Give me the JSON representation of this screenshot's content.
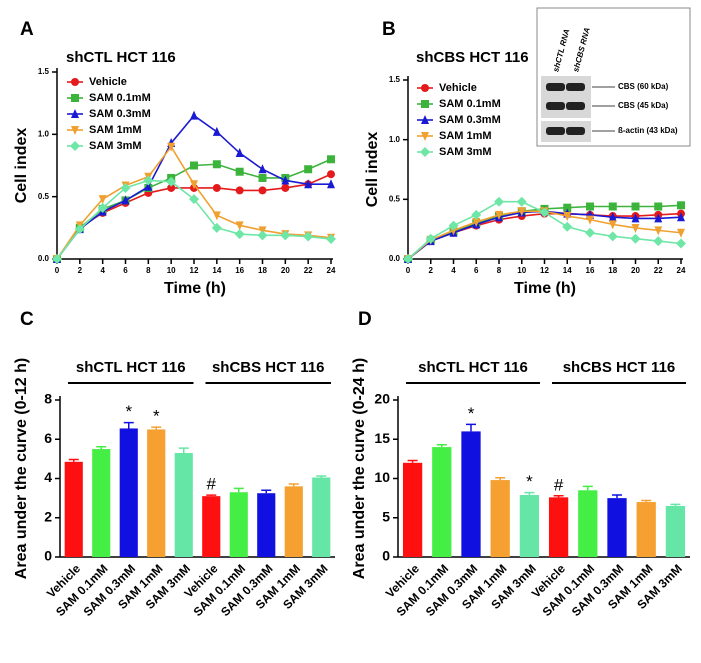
{
  "chart_data": [
    {
      "type": "line",
      "label": "A",
      "title": "shCTL HCT 116",
      "x_label": "Time (h)",
      "y_label": "Cell index",
      "x": [
        0,
        2,
        4,
        6,
        8,
        10,
        12,
        14,
        16,
        18,
        20,
        22,
        24
      ],
      "xlim": [
        0,
        24
      ],
      "xticks": [
        0,
        2,
        4,
        6,
        8,
        10,
        12,
        14,
        16,
        18,
        20,
        22,
        24
      ],
      "ylim": [
        0,
        1.5
      ],
      "yticks": [
        {
          "value": 0,
          "label": "0.0"
        },
        0.5,
        {
          "value": 1,
          "label": "1.0"
        },
        1.5
      ],
      "series": [
        {
          "name": "Vehicle",
          "color": "#e41a1c",
          "marker": "circle",
          "values": [
            0,
            0.25,
            0.37,
            0.45,
            0.53,
            0.57,
            0.57,
            0.57,
            0.55,
            0.55,
            0.57,
            0.6,
            0.68
          ]
        },
        {
          "name": "SAM 0.1mM",
          "color": "#3cb43c",
          "marker": "square",
          "values": [
            0,
            0.25,
            0.4,
            0.47,
            0.57,
            0.65,
            0.75,
            0.76,
            0.7,
            0.65,
            0.65,
            0.72,
            0.8
          ]
        },
        {
          "name": "SAM 0.3mM",
          "color": "#1a1ad2",
          "marker": "triangle",
          "values": [
            0,
            0.24,
            0.38,
            0.47,
            0.58,
            0.93,
            1.15,
            1.02,
            0.85,
            0.72,
            0.63,
            0.6,
            0.6
          ]
        },
        {
          "name": "SAM 1mM",
          "color": "#f0a030",
          "marker": "triangle-down",
          "values": [
            0,
            0.27,
            0.48,
            0.59,
            0.66,
            0.9,
            0.6,
            0.35,
            0.27,
            0.23,
            0.2,
            0.19,
            0.17
          ]
        },
        {
          "name": "SAM 3mM",
          "color": "#6ee6a6",
          "marker": "diamond",
          "values": [
            0,
            0.24,
            0.41,
            0.57,
            0.63,
            0.62,
            0.48,
            0.25,
            0.2,
            0.19,
            0.19,
            0.18,
            0.16
          ]
        }
      ]
    },
    {
      "type": "line",
      "label": "B",
      "title": "shCBS HCT 116",
      "x_label": "Time (h)",
      "y_label": "Cell index",
      "x": [
        0,
        2,
        4,
        6,
        8,
        10,
        12,
        14,
        16,
        18,
        20,
        22,
        24
      ],
      "xlim": [
        0,
        24
      ],
      "xticks": [
        0,
        2,
        4,
        6,
        8,
        10,
        12,
        14,
        16,
        18,
        20,
        22,
        24
      ],
      "ylim": [
        0,
        1.5
      ],
      "yticks": [
        {
          "value": 0,
          "label": "0.0"
        },
        0.5,
        {
          "value": 1,
          "label": "1.0"
        },
        1.5
      ],
      "series": [
        {
          "name": "Vehicle",
          "color": "#e41a1c",
          "marker": "circle",
          "values": [
            0,
            0.15,
            0.22,
            0.28,
            0.33,
            0.36,
            0.38,
            0.38,
            0.37,
            0.36,
            0.36,
            0.37,
            0.38
          ]
        },
        {
          "name": "SAM 0.1mM",
          "color": "#3cb43c",
          "marker": "square",
          "values": [
            0,
            0.16,
            0.23,
            0.3,
            0.36,
            0.4,
            0.42,
            0.43,
            0.44,
            0.44,
            0.44,
            0.44,
            0.45
          ]
        },
        {
          "name": "SAM 0.3mM",
          "color": "#1a1ad2",
          "marker": "triangle",
          "values": [
            0,
            0.15,
            0.22,
            0.29,
            0.35,
            0.39,
            0.4,
            0.38,
            0.37,
            0.35,
            0.34,
            0.34,
            0.35
          ]
        },
        {
          "name": "SAM 1mM",
          "color": "#f0a030",
          "marker": "triangle-down",
          "values": [
            0,
            0.16,
            0.24,
            0.31,
            0.37,
            0.4,
            0.4,
            0.36,
            0.33,
            0.29,
            0.26,
            0.24,
            0.22
          ]
        },
        {
          "name": "SAM 3mM",
          "color": "#6ee6a6",
          "marker": "diamond",
          "values": [
            0,
            0.17,
            0.28,
            0.37,
            0.48,
            0.48,
            0.39,
            0.27,
            0.22,
            0.19,
            0.17,
            0.15,
            0.13
          ]
        }
      ],
      "blot": {
        "lanes": [
          "shCTL RNA",
          "shCBS RNA"
        ],
        "bands": [
          "CBS (60 kDa)",
          "CBS (45 kDa)",
          "ß-actin (43 kDa)"
        ]
      }
    },
    {
      "type": "bar",
      "label": "C",
      "y_label": "Area under the curve (0-12 h)",
      "groups": [
        "shCTL HCT 116",
        "shCBS HCT 116"
      ],
      "categories": [
        "Vehicle",
        "SAM 0.1mM",
        "SAM 0.3mM",
        "SAM 1mM",
        "SAM 3mM",
        "Vehicle",
        "SAM 0.1mM",
        "SAM 0.3mM",
        "SAM 1mM",
        "SAM 3mM"
      ],
      "values": [
        4.85,
        5.5,
        6.55,
        6.5,
        5.3,
        3.1,
        3.3,
        3.25,
        3.6,
        4.05
      ],
      "errors": [
        0.12,
        0.12,
        0.3,
        0.12,
        0.25,
        0.05,
        0.2,
        0.15,
        0.12,
        0.08
      ],
      "markers": [
        null,
        null,
        "*",
        "*",
        null,
        "#",
        null,
        null,
        null,
        null
      ],
      "colors": [
        "#ff1010",
        "#44ee44",
        "#1010e0",
        "#f5a030",
        "#66e6a6",
        "#ff1010",
        "#44ee44",
        "#1010e0",
        "#f5a030",
        "#66e6a6"
      ],
      "ylim": [
        0,
        8
      ],
      "yticks": [
        0,
        2,
        4,
        6,
        8
      ]
    },
    {
      "type": "bar",
      "label": "D",
      "y_label": "Area under the curve (0-24 h)",
      "groups": [
        "shCTL HCT 116",
        "shCBS HCT 116"
      ],
      "categories": [
        "Vehicle",
        "SAM 0.1mM",
        "SAM 0.3mM",
        "SAM 1mM",
        "SAM 3mM",
        "Vehicle",
        "SAM 0.1mM",
        "SAM 0.3mM",
        "SAM 1mM",
        "SAM 3mM"
      ],
      "values": [
        12,
        14,
        16,
        9.8,
        7.9,
        7.6,
        8.5,
        7.5,
        7,
        6.5
      ],
      "errors": [
        0.3,
        0.3,
        0.9,
        0.3,
        0.3,
        0.2,
        0.5,
        0.4,
        0.2,
        0.2
      ],
      "markers": [
        null,
        null,
        "*",
        null,
        "*",
        "#",
        null,
        null,
        null,
        null
      ],
      "colors": [
        "#ff1010",
        "#44ee44",
        "#1010e0",
        "#f5a030",
        "#66e6a6",
        "#ff1010",
        "#44ee44",
        "#1010e0",
        "#f5a030",
        "#66e6a6"
      ],
      "ylim": [
        0,
        20
      ],
      "yticks": [
        0,
        5,
        10,
        15,
        20
      ]
    }
  ]
}
